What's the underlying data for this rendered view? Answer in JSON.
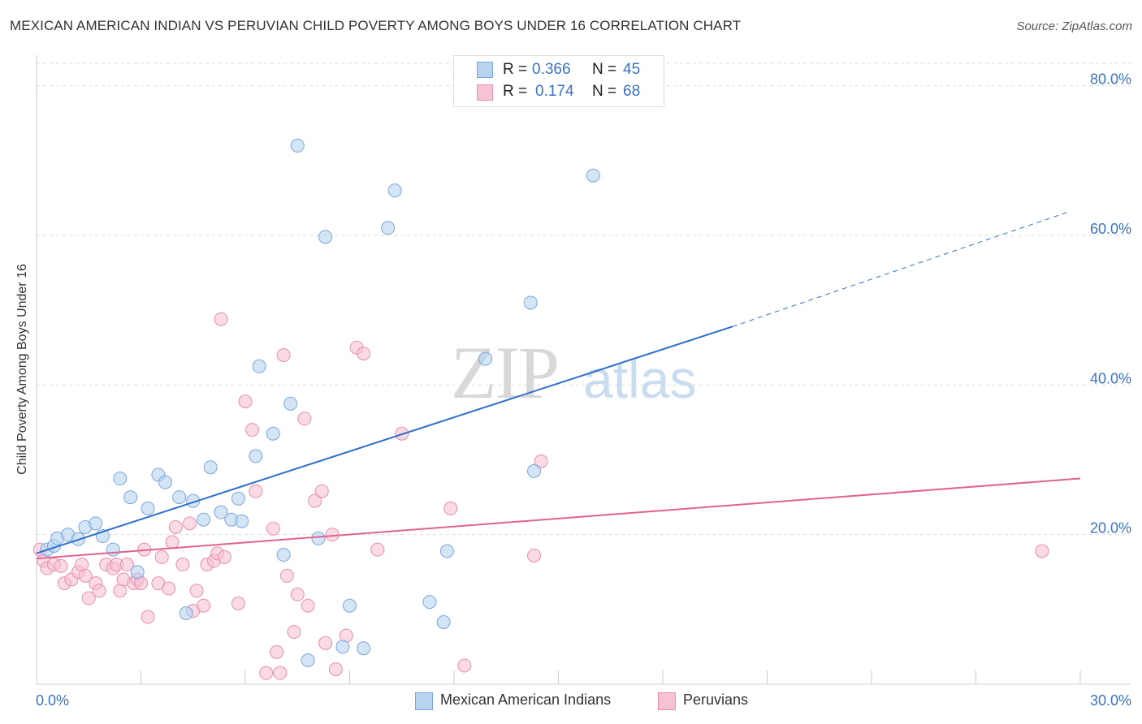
{
  "title": "MEXICAN AMERICAN INDIAN VS PERUVIAN CHILD POVERTY AMONG BOYS UNDER 16 CORRELATION CHART",
  "source": "Source: ZipAtlas.com",
  "watermark": {
    "zip": "ZIP",
    "atlas": "atlas"
  },
  "legend_top": [
    {
      "r_label": "R =",
      "r_value": "0.366",
      "n_label": "N =",
      "n_value": "45"
    },
    {
      "r_label": "R =",
      "r_value": "0.174",
      "n_label": "N =",
      "n_value": "68"
    }
  ],
  "colors": {
    "blue_fill": "#b8d3f0",
    "blue_stroke": "#7aa6dd",
    "blue_line": "#2f6fcb",
    "pink_fill": "#f7c2d3",
    "pink_stroke": "#e88fae",
    "pink_line": "#e0628f",
    "axis_text": "#3b72c4",
    "grid": "#dddddd"
  },
  "chart_data": {
    "type": "scatter",
    "title": "MEXICAN AMERICAN INDIAN VS PERUVIAN CHILD POVERTY AMONG BOYS UNDER 16 CORRELATION CHART",
    "xlabel": "",
    "ylabel": "Child Poverty Among Boys Under 16",
    "xlim": [
      0,
      30
    ],
    "ylim": [
      0,
      83
    ],
    "x_tick_labels": [
      "0.0%",
      "30.0%"
    ],
    "y_ticks": [
      20,
      40,
      60,
      80
    ],
    "y_tick_labels": [
      "20.0%",
      "40.0%",
      "60.0%",
      "80.0%"
    ],
    "grid": "horizontal dashed",
    "legend_position": "top-center",
    "series": [
      {
        "name": "Mexican American Indians",
        "color": "#b8d3f0",
        "trend": {
          "x0": 0,
          "y0": 17.5,
          "x1": 20.0,
          "y1": 47.8,
          "dashed_to_x": 29.7,
          "dashed_to_y": 63.2
        },
        "points": [
          [
            0.3,
            18.0
          ],
          [
            0.5,
            18.5
          ],
          [
            0.6,
            19.5
          ],
          [
            0.9,
            20.0
          ],
          [
            1.2,
            19.4
          ],
          [
            1.4,
            21.0
          ],
          [
            1.7,
            21.5
          ],
          [
            1.9,
            19.8
          ],
          [
            2.2,
            18.0
          ],
          [
            2.4,
            27.5
          ],
          [
            2.7,
            25.0
          ],
          [
            2.9,
            15.0
          ],
          [
            3.2,
            23.5
          ],
          [
            3.5,
            28.0
          ],
          [
            3.7,
            27.0
          ],
          [
            4.1,
            25.0
          ],
          [
            4.3,
            9.5
          ],
          [
            4.5,
            24.5
          ],
          [
            4.8,
            22.0
          ],
          [
            5.0,
            29.0
          ],
          [
            5.3,
            23.0
          ],
          [
            5.6,
            22.0
          ],
          [
            5.8,
            24.8
          ],
          [
            5.9,
            21.8
          ],
          [
            6.3,
            30.5
          ],
          [
            6.4,
            42.5
          ],
          [
            6.8,
            33.5
          ],
          [
            7.1,
            17.3
          ],
          [
            7.3,
            37.5
          ],
          [
            7.5,
            72.0
          ],
          [
            7.8,
            3.2
          ],
          [
            8.1,
            19.5
          ],
          [
            8.3,
            59.8
          ],
          [
            8.8,
            5.0
          ],
          [
            9.0,
            10.5
          ],
          [
            9.4,
            4.8
          ],
          [
            10.1,
            61.0
          ],
          [
            10.3,
            66.0
          ],
          [
            11.3,
            11.0
          ],
          [
            11.7,
            8.3
          ],
          [
            11.8,
            17.8
          ],
          [
            12.9,
            43.5
          ],
          [
            14.2,
            51.0
          ],
          [
            14.3,
            28.5
          ],
          [
            16.0,
            68.0
          ]
        ]
      },
      {
        "name": "Peruvians",
        "color": "#f7c2d3",
        "trend": {
          "x0": 0,
          "y0": 16.8,
          "x1": 30.0,
          "y1": 27.5
        },
        "points": [
          [
            0.1,
            18.0
          ],
          [
            0.2,
            16.5
          ],
          [
            0.3,
            15.5
          ],
          [
            0.5,
            16.0
          ],
          [
            0.7,
            15.8
          ],
          [
            0.8,
            13.5
          ],
          [
            1.0,
            14.0
          ],
          [
            1.2,
            15.0
          ],
          [
            1.3,
            16.0
          ],
          [
            1.4,
            14.5
          ],
          [
            1.5,
            11.5
          ],
          [
            1.7,
            13.5
          ],
          [
            1.8,
            12.5
          ],
          [
            2.0,
            16.0
          ],
          [
            2.2,
            15.5
          ],
          [
            2.3,
            16.0
          ],
          [
            2.4,
            12.5
          ],
          [
            2.5,
            14.0
          ],
          [
            2.6,
            16.0
          ],
          [
            2.8,
            13.5
          ],
          [
            2.9,
            14.0
          ],
          [
            3.0,
            13.5
          ],
          [
            3.1,
            18.0
          ],
          [
            3.2,
            9.0
          ],
          [
            3.5,
            13.5
          ],
          [
            3.6,
            17.0
          ],
          [
            3.8,
            12.8
          ],
          [
            3.9,
            19.0
          ],
          [
            4.0,
            21.0
          ],
          [
            4.2,
            16.0
          ],
          [
            4.4,
            21.5
          ],
          [
            4.5,
            9.8
          ],
          [
            4.6,
            12.5
          ],
          [
            4.8,
            10.5
          ],
          [
            4.9,
            16.0
          ],
          [
            5.1,
            16.5
          ],
          [
            5.2,
            17.5
          ],
          [
            5.3,
            48.8
          ],
          [
            5.4,
            17.0
          ],
          [
            5.8,
            10.8
          ],
          [
            6.0,
            37.8
          ],
          [
            6.2,
            34.0
          ],
          [
            6.3,
            25.8
          ],
          [
            6.6,
            1.5
          ],
          [
            6.8,
            20.8
          ],
          [
            6.9,
            4.3
          ],
          [
            7.0,
            1.5
          ],
          [
            7.1,
            44.0
          ],
          [
            7.2,
            14.5
          ],
          [
            7.4,
            7.0
          ],
          [
            7.5,
            12.0
          ],
          [
            7.7,
            35.5
          ],
          [
            7.8,
            10.5
          ],
          [
            8.0,
            24.5
          ],
          [
            8.2,
            25.8
          ],
          [
            8.3,
            5.5
          ],
          [
            8.5,
            20.0
          ],
          [
            8.6,
            2.0
          ],
          [
            8.9,
            6.5
          ],
          [
            9.2,
            45.0
          ],
          [
            9.4,
            44.2
          ],
          [
            9.8,
            18.0
          ],
          [
            10.5,
            33.5
          ],
          [
            11.9,
            23.5
          ],
          [
            12.3,
            2.5
          ],
          [
            14.3,
            17.2
          ],
          [
            14.5,
            29.8
          ],
          [
            28.9,
            17.8
          ]
        ]
      }
    ]
  },
  "bottom_legend": [
    "Mexican American Indians",
    "Peruvians"
  ]
}
